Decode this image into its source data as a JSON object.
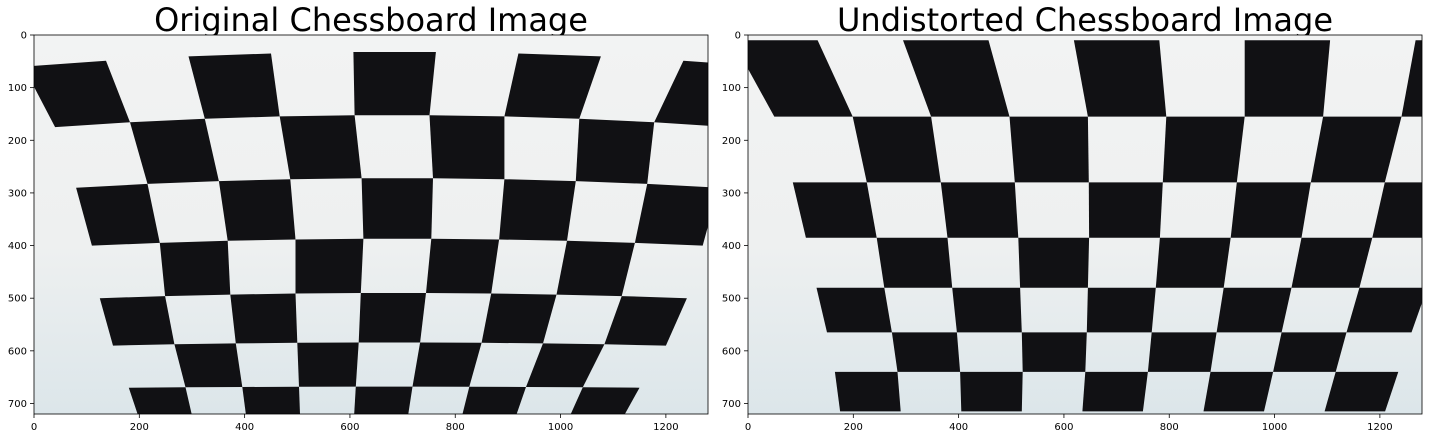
{
  "figure": {
    "panels": [
      {
        "title": "Original Chessboard Image",
        "xticks": [
          "0",
          "200",
          "400",
          "600",
          "800",
          "1000",
          "1200"
        ],
        "yticks": [
          "0",
          "100",
          "200",
          "300",
          "400",
          "500",
          "600",
          "700"
        ],
        "xlim": [
          0,
          1280
        ],
        "ylim": [
          720,
          0
        ],
        "content": "photo of a chessboard pattern with barrel lens distortion"
      },
      {
        "title": "Undistorted Chessboard Image",
        "xticks": [
          "0",
          "200",
          "400",
          "600",
          "800",
          "1000",
          "1200"
        ],
        "yticks": [
          "0",
          "100",
          "200",
          "300",
          "400",
          "500",
          "600",
          "700"
        ],
        "xlim": [
          0,
          1280
        ],
        "ylim": [
          720,
          0
        ],
        "content": "same chessboard photo after lens-distortion correction"
      }
    ],
    "colors": {
      "paper": "#eef0f0",
      "wall": "#dce6ea",
      "square": "#111114"
    }
  }
}
